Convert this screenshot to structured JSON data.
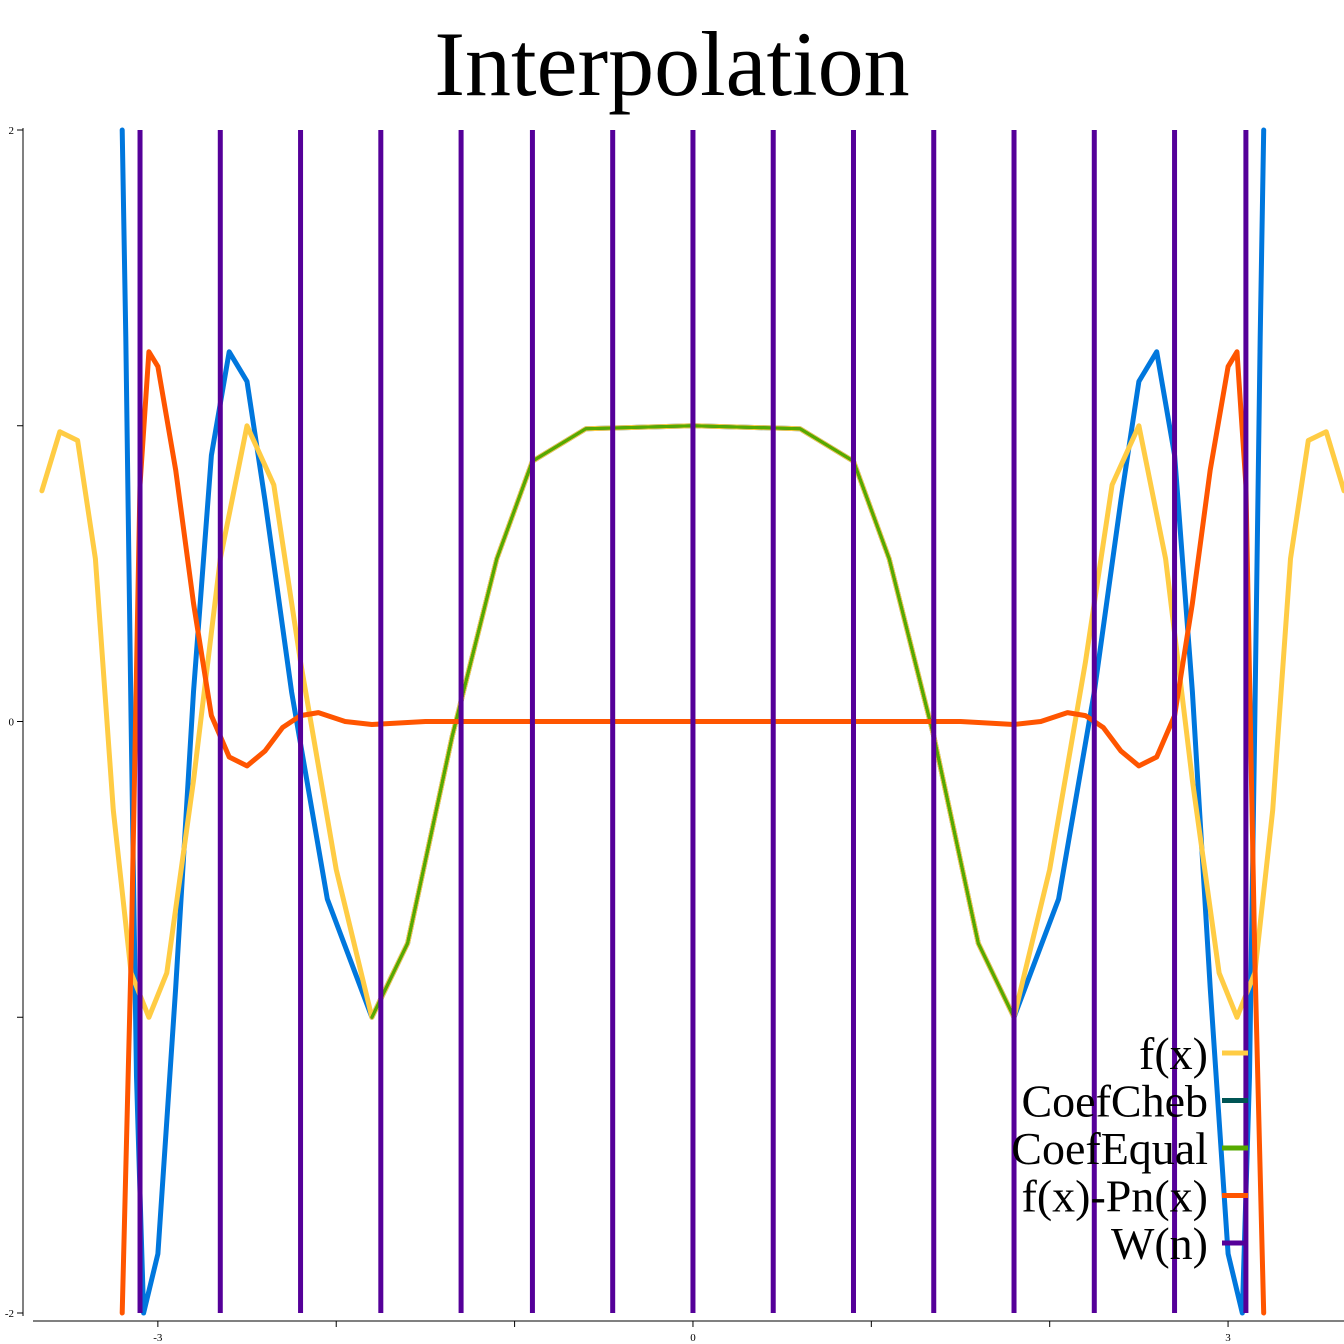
{
  "chart_data": {
    "type": "line",
    "title": "Interpolation",
    "xlabel": "",
    "ylabel": "",
    "xlim": [
      -3.7,
      3.65
    ],
    "ylim": [
      -2,
      2
    ],
    "x_ticks": [
      {
        "value": -3,
        "label": "-3"
      },
      {
        "value": -2,
        "label": ""
      },
      {
        "value": -1,
        "label": ""
      },
      {
        "value": 0,
        "label": "0"
      },
      {
        "value": 1,
        "label": ""
      },
      {
        "value": 2,
        "label": ""
      },
      {
        "value": 3,
        "label": "3"
      }
    ],
    "y_ticks": [
      {
        "value": 2,
        "label": "2"
      },
      {
        "value": 1,
        "label": ""
      },
      {
        "value": 0,
        "label": "0"
      },
      {
        "value": -1,
        "label": ""
      },
      {
        "value": -2,
        "label": "-2"
      }
    ],
    "grid": false,
    "legend_position": "bottom-right",
    "nodes": [
      -3.14159,
      -2.69279,
      -2.24399,
      -1.7952,
      -1.3464,
      -0.8976,
      -0.4488,
      0,
      0.4488,
      0.8976,
      1.3464,
      1.7952,
      2.24399,
      2.69279,
      3.14159
    ],
    "vertical_lines_x": [
      -3.1,
      -2.65,
      -2.2,
      -1.75,
      -1.3,
      -0.9,
      -0.45,
      0,
      0.45,
      0.9,
      1.35,
      1.8,
      2.25,
      2.7,
      3.1
    ],
    "series": [
      {
        "name": "f(x)",
        "color": "#ffcc44",
        "points": [
          [
            -3.65,
            0.78
          ],
          [
            -3.55,
            0.98
          ],
          [
            -3.45,
            0.95
          ],
          [
            -3.35,
            0.55
          ],
          [
            -3.25,
            -0.3
          ],
          [
            -3.15,
            -0.85
          ],
          [
            -3.05,
            -1.0
          ],
          [
            -2.95,
            -0.85
          ],
          [
            -2.8,
            -0.2
          ],
          [
            -2.65,
            0.55
          ],
          [
            -2.5,
            1.0
          ],
          [
            -2.35,
            0.8
          ],
          [
            -2.2,
            0.2
          ],
          [
            -2.0,
            -0.5
          ],
          [
            -1.8,
            -1.0
          ],
          [
            -1.6,
            -0.75
          ],
          [
            -1.35,
            -0.05
          ],
          [
            -1.1,
            0.55
          ],
          [
            -0.9,
            0.88
          ],
          [
            -0.6,
            0.99
          ],
          [
            0,
            1.0
          ],
          [
            0.6,
            0.99
          ],
          [
            0.9,
            0.88
          ],
          [
            1.1,
            0.55
          ],
          [
            1.35,
            -0.05
          ],
          [
            1.6,
            -0.75
          ],
          [
            1.8,
            -1.0
          ],
          [
            2.0,
            -0.5
          ],
          [
            2.2,
            0.2
          ],
          [
            2.35,
            0.8
          ],
          [
            2.5,
            1.0
          ],
          [
            2.65,
            0.55
          ],
          [
            2.8,
            -0.2
          ],
          [
            2.95,
            -0.85
          ],
          [
            3.05,
            -1.0
          ],
          [
            3.15,
            -0.85
          ],
          [
            3.25,
            -0.3
          ],
          [
            3.35,
            0.55
          ],
          [
            3.45,
            0.95
          ],
          [
            3.55,
            0.98
          ],
          [
            3.65,
            0.78
          ]
        ]
      },
      {
        "name": "CoefCheb",
        "color": "#005555",
        "points": [
          [
            -1.8,
            -1.0
          ],
          [
            -1.6,
            -0.75
          ],
          [
            -1.35,
            -0.05
          ],
          [
            -1.1,
            0.55
          ],
          [
            -0.9,
            0.88
          ],
          [
            -0.6,
            0.99
          ],
          [
            0,
            1.0
          ],
          [
            0.6,
            0.99
          ],
          [
            0.9,
            0.88
          ],
          [
            1.1,
            0.55
          ],
          [
            1.35,
            -0.05
          ],
          [
            1.6,
            -0.75
          ],
          [
            1.8,
            -1.0
          ]
        ]
      },
      {
        "name": "CoefEqual",
        "color": "#55aa00",
        "points": [
          [
            -1.8,
            -1.0
          ],
          [
            -1.6,
            -0.75
          ],
          [
            -1.35,
            -0.05
          ],
          [
            -1.1,
            0.55
          ],
          [
            -0.9,
            0.88
          ],
          [
            -0.6,
            0.99
          ],
          [
            0,
            1.0
          ],
          [
            0.6,
            0.99
          ],
          [
            0.9,
            0.88
          ],
          [
            1.1,
            0.55
          ],
          [
            1.35,
            -0.05
          ],
          [
            1.6,
            -0.75
          ],
          [
            1.8,
            -1.0
          ]
        ]
      },
      {
        "name": "f(x)-Pn(x)",
        "color": "#ff5500",
        "points": [
          [
            -3.2,
            -2.0
          ],
          [
            -3.15,
            -0.8
          ],
          [
            -3.1,
            0.8
          ],
          [
            -3.05,
            1.25
          ],
          [
            -3.0,
            1.2
          ],
          [
            -2.9,
            0.85
          ],
          [
            -2.8,
            0.4
          ],
          [
            -2.7,
            0.02
          ],
          [
            -2.6,
            -0.12
          ],
          [
            -2.5,
            -0.15
          ],
          [
            -2.4,
            -0.1
          ],
          [
            -2.3,
            -0.02
          ],
          [
            -2.2,
            0.02
          ],
          [
            -2.1,
            0.03
          ],
          [
            -1.95,
            0.0
          ],
          [
            -1.8,
            -0.01
          ],
          [
            -1.5,
            0.0
          ],
          [
            0,
            0.0
          ],
          [
            1.5,
            0.0
          ],
          [
            1.8,
            -0.01
          ],
          [
            1.95,
            0.0
          ],
          [
            2.1,
            0.03
          ],
          [
            2.2,
            0.02
          ],
          [
            2.3,
            -0.02
          ],
          [
            2.4,
            -0.1
          ],
          [
            2.5,
            -0.15
          ],
          [
            2.6,
            -0.12
          ],
          [
            2.7,
            0.02
          ],
          [
            2.8,
            0.4
          ],
          [
            2.9,
            0.85
          ],
          [
            3.0,
            1.2
          ],
          [
            3.05,
            1.25
          ],
          [
            3.1,
            0.8
          ],
          [
            3.15,
            -0.8
          ],
          [
            3.2,
            -2.0
          ]
        ]
      },
      {
        "name": "W(n)",
        "color": "#550099",
        "points": []
      },
      {
        "name": "",
        "color": "#0077dd",
        "points": [
          [
            -3.2,
            2.0
          ],
          [
            -3.18,
            1.3
          ],
          [
            -3.15,
            0.0
          ],
          [
            -3.12,
            -1.2
          ],
          [
            -3.08,
            -2.0
          ],
          [
            -3.0,
            -1.8
          ],
          [
            -2.9,
            -0.9
          ],
          [
            -2.8,
            0.1
          ],
          [
            -2.7,
            0.9
          ],
          [
            -2.6,
            1.25
          ],
          [
            -2.5,
            1.15
          ],
          [
            -2.4,
            0.75
          ],
          [
            -2.25,
            0.1
          ],
          [
            -2.05,
            -0.6
          ],
          [
            -1.8,
            -1.0
          ],
          [
            -1.6,
            -0.75
          ],
          [
            -1.35,
            -0.05
          ],
          [
            -1.1,
            0.55
          ],
          [
            -0.9,
            0.88
          ],
          [
            -0.6,
            0.99
          ],
          [
            0,
            1.0
          ],
          [
            0.6,
            0.99
          ],
          [
            0.9,
            0.88
          ],
          [
            1.1,
            0.55
          ],
          [
            1.35,
            -0.05
          ],
          [
            1.6,
            -0.75
          ],
          [
            1.8,
            -1.0
          ],
          [
            2.05,
            -0.6
          ],
          [
            2.25,
            0.1
          ],
          [
            2.4,
            0.75
          ],
          [
            2.5,
            1.15
          ],
          [
            2.6,
            1.25
          ],
          [
            2.7,
            0.9
          ],
          [
            2.8,
            0.1
          ],
          [
            2.9,
            -0.9
          ],
          [
            3.0,
            -1.8
          ],
          [
            3.08,
            -2.0
          ],
          [
            3.12,
            -1.2
          ],
          [
            3.15,
            0.0
          ],
          [
            3.18,
            1.3
          ],
          [
            3.2,
            2.0
          ]
        ]
      }
    ]
  }
}
